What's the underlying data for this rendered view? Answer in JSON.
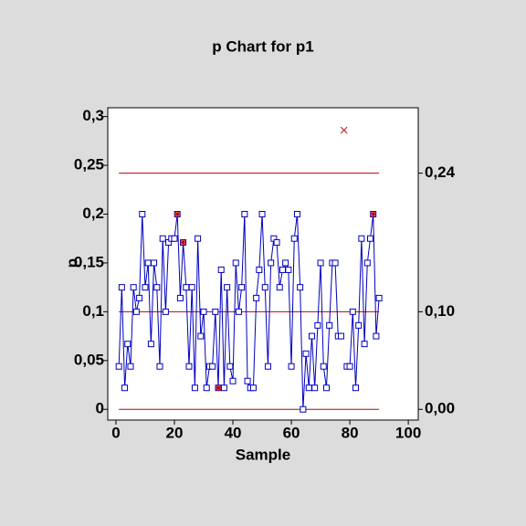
{
  "chart_data": {
    "type": "control",
    "title": "p Chart for p1",
    "xlabel": "Sample",
    "ylabel": "p",
    "xlim": [
      -2.8,
      103.4
    ],
    "xticks": [
      0,
      20,
      40,
      60,
      80,
      100
    ],
    "ylim": [
      -0.011,
      0.309
    ],
    "yticks": [
      {
        "value": 0,
        "label": "0"
      },
      {
        "value": 0.05,
        "label": "0,05"
      },
      {
        "value": 0.1,
        "label": "0,1"
      },
      {
        "value": 0.15,
        "label": "0,15"
      },
      {
        "value": 0.2,
        "label": "0,2"
      },
      {
        "value": 0.25,
        "label": "0,25"
      },
      {
        "value": 0.3,
        "label": "0,3"
      }
    ],
    "y2lim": [
      -0.011,
      0.309
    ],
    "y2ticks": [
      {
        "value": 0,
        "label": "0,00"
      },
      {
        "value": 0.1,
        "label": "0,10"
      },
      {
        "value": 0.242,
        "label": "0,24"
      }
    ],
    "limit_color": "#c00000",
    "x": [
      1,
      2,
      3,
      4,
      5,
      6,
      7,
      8,
      9,
      10,
      11,
      12,
      13,
      14,
      15,
      16,
      17,
      18,
      19,
      20,
      21,
      22,
      23,
      24,
      25,
      26,
      27,
      28,
      29,
      30,
      31,
      32,
      33,
      34,
      35,
      36,
      37,
      38,
      39,
      40,
      41,
      42,
      43,
      44,
      45,
      46,
      47,
      48,
      49,
      50,
      51,
      52,
      53,
      54,
      55,
      56,
      57,
      58,
      59,
      60,
      61,
      62,
      63,
      64,
      65,
      66,
      67,
      68,
      69,
      70,
      71,
      72,
      73,
      74,
      75,
      76,
      77,
      78,
      79,
      80,
      81,
      82,
      83,
      84,
      85,
      86,
      87,
      88,
      89,
      90
    ],
    "series": [
      {
        "color": "#0000c0",
        "values": [
          0.044,
          0.125,
          0.022,
          0.067,
          0.044,
          0.125,
          0.1,
          0.114,
          0.2,
          0.125,
          0.15,
          0.067,
          0.15,
          0.125,
          0.044,
          0.175,
          0.1,
          0.171,
          0.175,
          0.175,
          0.2,
          0.114,
          0.171,
          0.125,
          0.044,
          0.125,
          0.022,
          0.175,
          0.075,
          0.1,
          0.022,
          0.044,
          0.044,
          0.1,
          0.022,
          0.143,
          0.022,
          0.125,
          0.044,
          0.029,
          0.15,
          0.1,
          0.125,
          0.2,
          0.029,
          0.022,
          0.022,
          0.114,
          0.143,
          0.2,
          0.125,
          0.044,
          0.15,
          0.175,
          0.171,
          0.125,
          0.143,
          0.15,
          0.143,
          0.044,
          0.175,
          0.2,
          0.125,
          0,
          0.057,
          0.022,
          0.075,
          0.022,
          0.086,
          0.15,
          0.044,
          0.022,
          0.086,
          0.15,
          0.15,
          0.075,
          0.075,
          null,
          0.044,
          0.044,
          0.1,
          0.022,
          0.086,
          0.175,
          0.067,
          0.15,
          0.175,
          0.2,
          0.075,
          0.114
        ]
      }
    ],
    "flagged": [
      20,
      22,
      34,
      87
    ],
    "flag_color": "#c00000",
    "excluded": {
      "x": [
        78
      ],
      "values": [
        0.286
      ],
      "color": "#c00000"
    }
  }
}
